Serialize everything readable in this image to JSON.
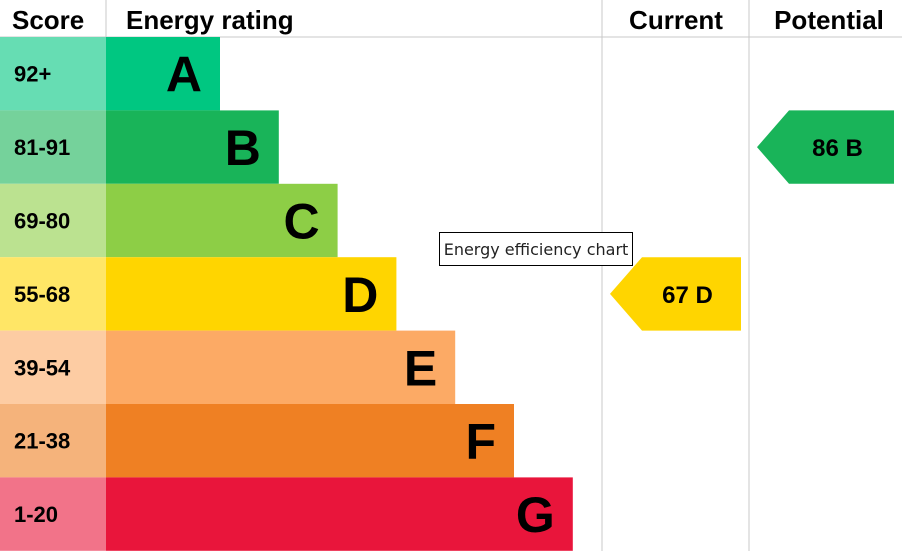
{
  "header": {
    "score": "Score",
    "energy_rating": "Energy rating",
    "current": "Current",
    "potential": "Potential"
  },
  "tooltip": "Energy efficiency chart",
  "chart_data": {
    "type": "bar",
    "categories": [
      "A",
      "B",
      "C",
      "D",
      "E",
      "F",
      "G"
    ],
    "score_ranges": [
      "92+",
      "81-91",
      "69-80",
      "55-68",
      "39-54",
      "21-38",
      "1-20"
    ],
    "band_colors": [
      "#00c781",
      "#19b459",
      "#8dce46",
      "#ffd500",
      "#fcaa65",
      "#ef8023",
      "#e9153b"
    ],
    "score_cell_colors": [
      "#66ddb3",
      "#75d29b",
      "#bbe290",
      "#ffe666",
      "#fdcca3",
      "#f5b37b",
      "#f27389"
    ],
    "current": {
      "score": 67,
      "rating": "D",
      "color": "#ffd500"
    },
    "potential": {
      "score": 86,
      "rating": "B",
      "color": "#19b459"
    }
  }
}
